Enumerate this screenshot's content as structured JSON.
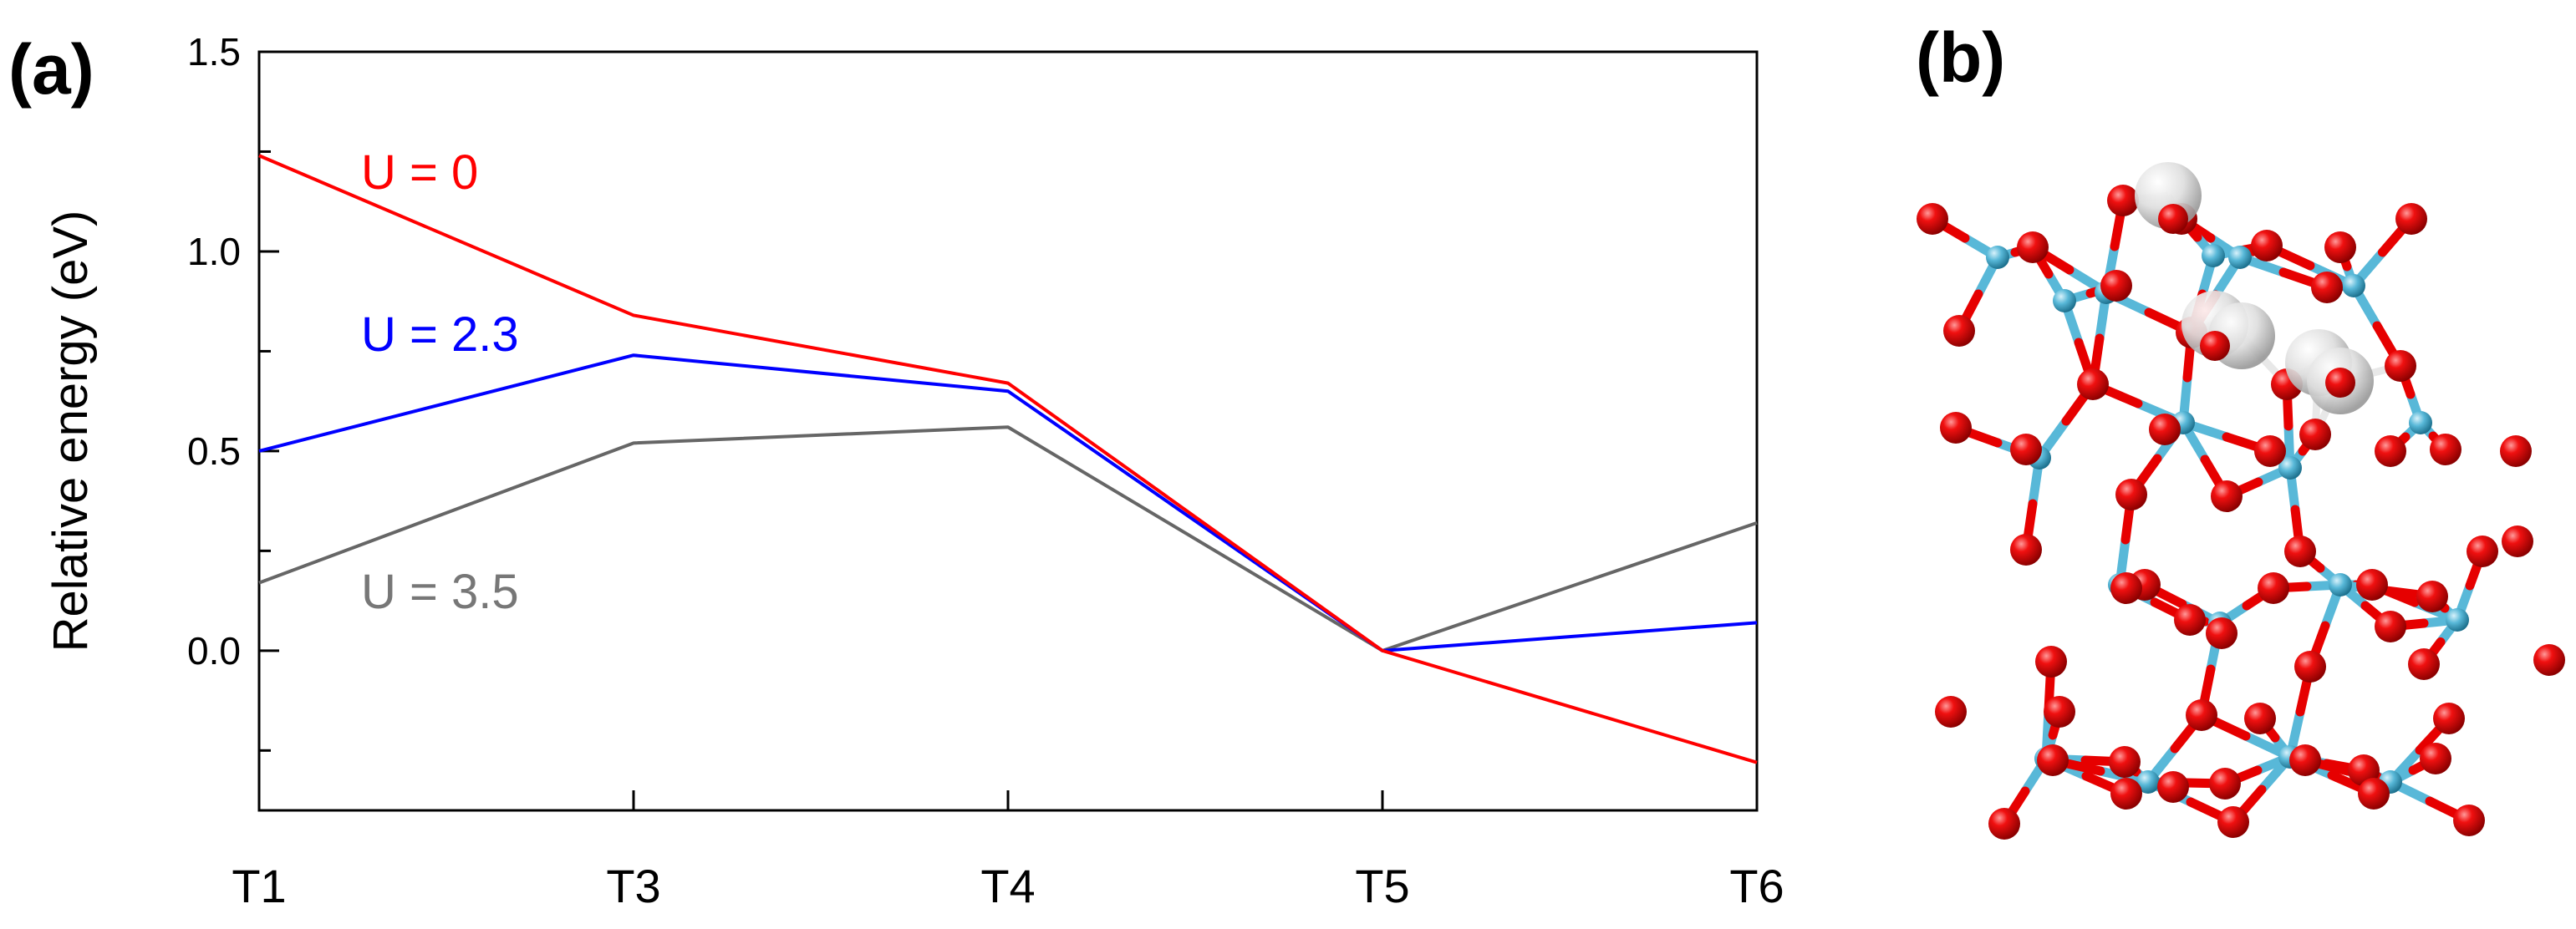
{
  "panels": {
    "a_label": "(a)",
    "b_label": "(b)"
  },
  "chart_data": {
    "type": "line",
    "categories": [
      "T1",
      "T3",
      "T4",
      "T5",
      "T6"
    ],
    "ylabel": "Relative energy (eV)",
    "ylim": [
      -0.4,
      1.5
    ],
    "yticks": [
      0.0,
      0.5,
      1.0,
      1.5
    ],
    "yticks_labels": [
      "0.0",
      "0.5",
      "1.0",
      "1.5"
    ],
    "y_minor_tick_step": 0.25,
    "grid": false,
    "series": [
      {
        "name": "U = 0",
        "color": "#ff0000",
        "values": [
          1.24,
          0.84,
          0.67,
          0.0,
          -0.28
        ]
      },
      {
        "name": "U = 2.3",
        "color": "#0000ff",
        "values": [
          0.5,
          0.74,
          0.65,
          0.0,
          0.07
        ]
      },
      {
        "name": "U = 3.5",
        "color": "#666666",
        "label_color": "#777777",
        "values": [
          0.17,
          0.52,
          0.56,
          0.0,
          0.32
        ]
      }
    ]
  },
  "structure": {
    "colors": {
      "oxygen": "#e60000",
      "metal": "#58b8d8",
      "hydrogen": "#d6d6d6"
    }
  }
}
